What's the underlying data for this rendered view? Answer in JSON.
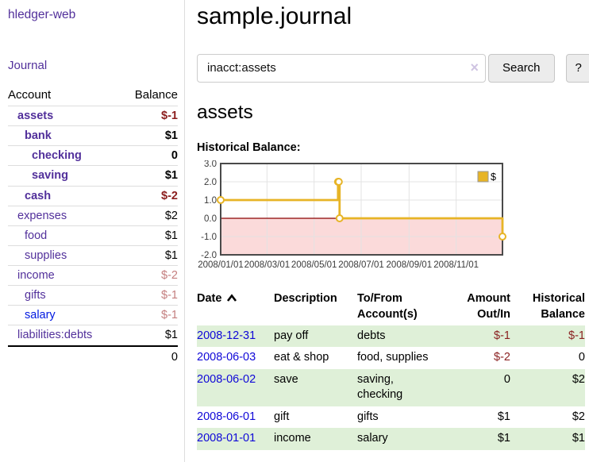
{
  "app": {
    "brand": "hledger-web",
    "nav": {
      "journal": "Journal"
    }
  },
  "colors": {
    "link_purple": "#52309b",
    "link_blue": "#0018e0",
    "negative_strong": "#8b1d1d",
    "negative_soft": "#c47e7e",
    "row_stripe_green": "#dff0d8",
    "chart_line_gold": "#e7b426",
    "chart_negative_band": "#fbdada",
    "chart_zero_line": "#8b0000"
  },
  "sidebar": {
    "header": {
      "account": "Account",
      "balance": "Balance"
    },
    "accounts": [
      {
        "label": "assets",
        "indent": 1,
        "bold": true,
        "blue": false,
        "balance": "$-1",
        "balance_class": "neg-strong"
      },
      {
        "label": "bank",
        "indent": 2,
        "bold": true,
        "blue": false,
        "balance": "$1",
        "balance_class": "b"
      },
      {
        "label": "checking",
        "indent": 3,
        "bold": true,
        "blue": false,
        "balance": "0",
        "balance_class": "b"
      },
      {
        "label": "saving",
        "indent": 3,
        "bold": true,
        "blue": false,
        "balance": "$1",
        "balance_class": "b"
      },
      {
        "label": "cash",
        "indent": 2,
        "bold": true,
        "blue": false,
        "balance": "$-2",
        "balance_class": "neg-strong"
      },
      {
        "label": "expenses",
        "indent": 1,
        "bold": false,
        "blue": false,
        "balance": "$2",
        "balance_class": ""
      },
      {
        "label": "food",
        "indent": 2,
        "bold": false,
        "blue": false,
        "balance": "$1",
        "balance_class": ""
      },
      {
        "label": "supplies",
        "indent": 2,
        "bold": false,
        "blue": false,
        "balance": "$1",
        "balance_class": ""
      },
      {
        "label": "income",
        "indent": 1,
        "bold": false,
        "blue": false,
        "balance": "$-2",
        "balance_class": "neg-soft"
      },
      {
        "label": "gifts",
        "indent": 2,
        "bold": false,
        "blue": false,
        "balance": "$-1",
        "balance_class": "neg-soft"
      },
      {
        "label": "salary",
        "indent": 2,
        "bold": false,
        "blue": true,
        "balance": "$-1",
        "balance_class": "neg-soft"
      },
      {
        "label": "liabilities:debts",
        "indent": 1,
        "bold": false,
        "blue": false,
        "balance": "$1",
        "balance_class": ""
      }
    ],
    "total": "0"
  },
  "main": {
    "title": "sample.journal",
    "search": {
      "value": "inacct:assets",
      "clear_icon": "×",
      "search_label": "Search",
      "help_label": "?"
    },
    "account_heading": "assets",
    "chart_label": "Historical Balance:"
  },
  "chart_data": {
    "type": "line",
    "step": true,
    "title": "Historical Balance:",
    "x": [
      "2008-01-01",
      "2008-06-01",
      "2008-06-02",
      "2008-06-03",
      "2008-12-31"
    ],
    "series": [
      {
        "name": "$",
        "values": [
          1,
          2,
          2,
          0,
          -1
        ],
        "color": "#e7b426"
      }
    ],
    "xrange": [
      "2008-01-01",
      "2008-12-31"
    ],
    "ylim": [
      -2,
      3
    ],
    "yticks": [
      "3.0",
      "2.0",
      "1.0",
      "0.0",
      "-1.0",
      "-2.0"
    ],
    "xtick_labels": [
      "2008/01/01",
      "2008/03/01",
      "2008/05/01",
      "2008/07/01",
      "2008/09/01",
      "2008/11/01"
    ],
    "grid": true,
    "legend_position": "top-right",
    "legend_label": "$",
    "negative_band_color": "#fbdada",
    "zero_line_color": "#8b0000"
  },
  "table": {
    "headers": [
      "Date",
      "Description",
      "To/From Account(s)",
      "Amount Out/In",
      "Historical Balance"
    ],
    "sort": {
      "column": "Date",
      "direction": "asc"
    },
    "rows": [
      {
        "date": "2008-12-31",
        "description": "pay off",
        "accounts": "debts",
        "amount": "$-1",
        "amount_neg": true,
        "balance": "$-1",
        "balance_neg": true
      },
      {
        "date": "2008-06-03",
        "description": "eat & shop",
        "accounts": "food, supplies",
        "amount": "$-2",
        "amount_neg": true,
        "balance": "0",
        "balance_neg": false
      },
      {
        "date": "2008-06-02",
        "description": "save",
        "accounts": "saving, checking",
        "amount": "0",
        "amount_neg": false,
        "balance": "$2",
        "balance_neg": false
      },
      {
        "date": "2008-06-01",
        "description": "gift",
        "accounts": "gifts",
        "amount": "$1",
        "amount_neg": false,
        "balance": "$2",
        "balance_neg": false
      },
      {
        "date": "2008-01-01",
        "description": "income",
        "accounts": "salary",
        "amount": "$1",
        "amount_neg": false,
        "balance": "$1",
        "balance_neg": false
      }
    ]
  }
}
